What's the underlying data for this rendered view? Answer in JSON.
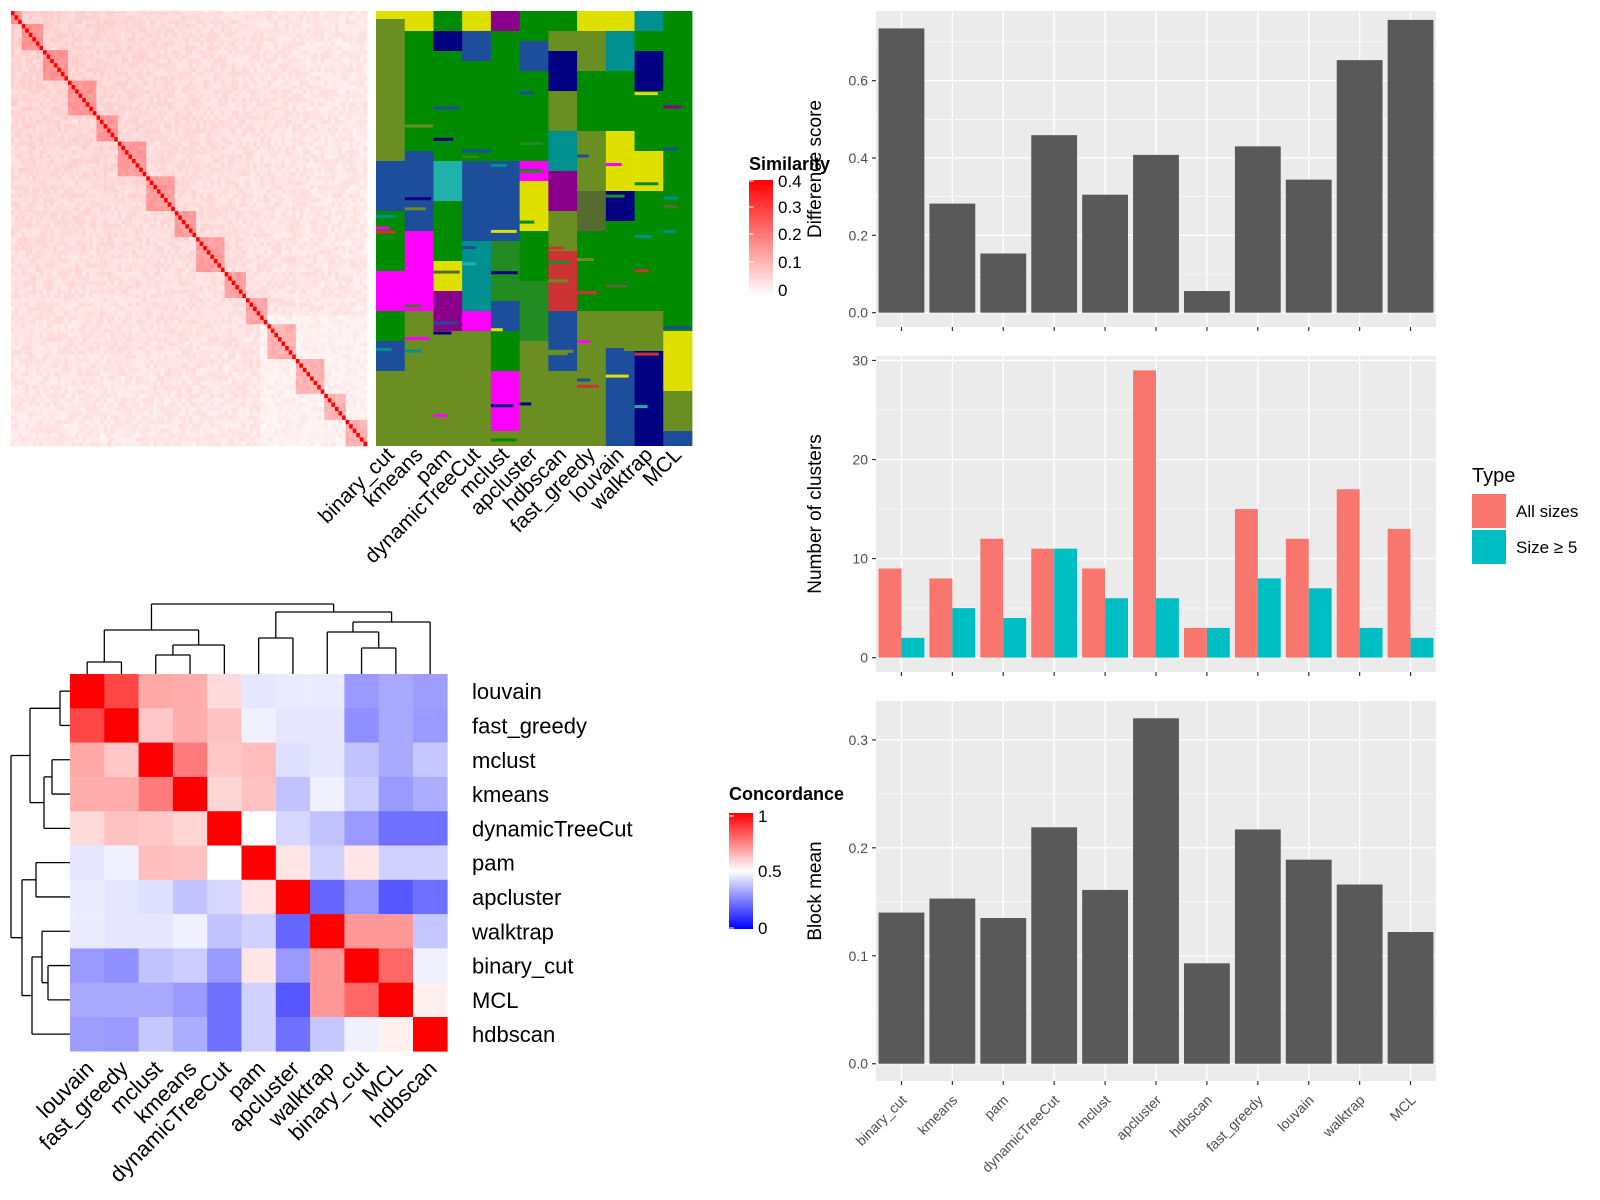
{
  "chart_data": [
    {
      "type": "heatmap",
      "panel": "similarity",
      "legend_title": "Similarity",
      "legend_ticks": [
        "0.4",
        "0.3",
        "0.2",
        "0.1",
        "0"
      ],
      "colors": {
        "low": "#ffffff",
        "high": "#ff0000"
      },
      "column_labels": [
        "binary_cut",
        "kmeans",
        "pam",
        "dynamicTreeCut",
        "mclust",
        "apcluster",
        "hdbscan",
        "fast_greedy",
        "louvain",
        "walktrap",
        "MCL"
      ]
    },
    {
      "type": "heatmap",
      "panel": "concordance",
      "legend_title": "Concordance",
      "legend_ticks": [
        "1",
        "0.5",
        "0"
      ],
      "colors": {
        "low": "#0000ff",
        "mid": "#ffffff",
        "high": "#ff0000"
      },
      "labels": [
        "louvain",
        "fast_greedy",
        "mclust",
        "kmeans",
        "dynamicTreeCut",
        "pam",
        "apcluster",
        "walktrap",
        "binary_cut",
        "MCL",
        "hdbscan"
      ],
      "values": [
        [
          1.0,
          0.86,
          0.67,
          0.66,
          0.57,
          0.45,
          0.46,
          0.46,
          0.3,
          0.33,
          0.31
        ],
        [
          0.86,
          1.0,
          0.61,
          0.66,
          0.62,
          0.47,
          0.45,
          0.45,
          0.28,
          0.33,
          0.3
        ],
        [
          0.67,
          0.61,
          1.0,
          0.76,
          0.61,
          0.63,
          0.44,
          0.45,
          0.38,
          0.33,
          0.39
        ],
        [
          0.66,
          0.66,
          0.76,
          1.0,
          0.58,
          0.62,
          0.38,
          0.47,
          0.4,
          0.3,
          0.34
        ],
        [
          0.57,
          0.62,
          0.61,
          0.58,
          1.0,
          0.5,
          0.42,
          0.38,
          0.3,
          0.22,
          0.22
        ],
        [
          0.45,
          0.47,
          0.63,
          0.62,
          0.5,
          1.0,
          0.55,
          0.41,
          0.55,
          0.41,
          0.41
        ],
        [
          0.46,
          0.45,
          0.44,
          0.38,
          0.42,
          0.55,
          1.0,
          0.2,
          0.3,
          0.17,
          0.22
        ],
        [
          0.46,
          0.45,
          0.45,
          0.47,
          0.38,
          0.41,
          0.2,
          1.0,
          0.7,
          0.7,
          0.39
        ],
        [
          0.3,
          0.28,
          0.38,
          0.4,
          0.3,
          0.55,
          0.3,
          0.7,
          1.0,
          0.8,
          0.47
        ],
        [
          0.33,
          0.33,
          0.33,
          0.3,
          0.22,
          0.41,
          0.17,
          0.7,
          0.8,
          1.0,
          0.53
        ],
        [
          0.31,
          0.3,
          0.39,
          0.34,
          0.22,
          0.41,
          0.22,
          0.39,
          0.47,
          0.53,
          1.0
        ]
      ]
    },
    {
      "type": "bar",
      "panel": "difference",
      "categories": [
        "binary_cut",
        "kmeans",
        "pam",
        "dynamicTreeCut",
        "mclust",
        "apcluster",
        "hdbscan",
        "fast_greedy",
        "louvain",
        "walktrap",
        "MCL"
      ],
      "values": [
        0.735,
        0.282,
        0.153,
        0.459,
        0.305,
        0.408,
        0.056,
        0.43,
        0.344,
        0.653,
        0.757
      ],
      "ylabel": "Difference score",
      "ylim": [
        -0.037,
        0.78
      ],
      "yticks": [
        "0.0",
        "0.2",
        "0.4",
        "0.6"
      ],
      "yticks_values": [
        0,
        0.2,
        0.4,
        0.6
      ],
      "grid": true,
      "bar_color": "#595959"
    },
    {
      "type": "bar",
      "panel": "clusters",
      "categories": [
        "binary_cut",
        "kmeans",
        "pam",
        "dynamicTreeCut",
        "mclust",
        "apcluster",
        "hdbscan",
        "fast_greedy",
        "louvain",
        "walktrap",
        "MCL"
      ],
      "series": [
        {
          "name": "All sizes",
          "values": [
            9,
            8,
            12,
            11,
            9,
            29,
            3,
            15,
            12,
            17,
            13
          ],
          "color": "#F8766D"
        },
        {
          "name": "Size ≥ 5",
          "values": [
            2,
            5,
            4,
            11,
            6,
            6,
            3,
            8,
            7,
            3,
            2
          ],
          "color": "#00BFC4"
        }
      ],
      "ylabel": "Number of clusters",
      "ylim": [
        -1.45,
        30.45
      ],
      "yticks": [
        "0",
        "10",
        "20",
        "30"
      ],
      "yticks_values": [
        0,
        10,
        20,
        30
      ],
      "legend_title": "Type",
      "legend_position": "right",
      "grid": true
    },
    {
      "type": "bar",
      "panel": "blockmean",
      "categories": [
        "binary_cut",
        "kmeans",
        "pam",
        "dynamicTreeCut",
        "mclust",
        "apcluster",
        "hdbscan",
        "fast_greedy",
        "louvain",
        "walktrap",
        "MCL"
      ],
      "values": [
        0.14,
        0.153,
        0.135,
        0.219,
        0.161,
        0.32,
        0.093,
        0.217,
        0.189,
        0.166,
        0.122
      ],
      "ylabel": "Block mean",
      "ylim": [
        -0.016,
        0.336
      ],
      "yticks": [
        "0.0",
        "0.1",
        "0.2",
        "0.3"
      ],
      "yticks_values": [
        0,
        0.1,
        0.2,
        0.3
      ],
      "grid": true,
      "bar_color": "#595959"
    }
  ]
}
